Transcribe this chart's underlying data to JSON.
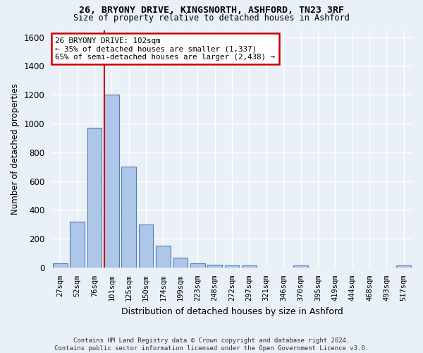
{
  "title1": "26, BRYONY DRIVE, KINGSNORTH, ASHFORD, TN23 3RF",
  "title2": "Size of property relative to detached houses in Ashford",
  "xlabel": "Distribution of detached houses by size in Ashford",
  "ylabel": "Number of detached properties",
  "categories": [
    "27sqm",
    "52sqm",
    "76sqm",
    "101sqm",
    "125sqm",
    "150sqm",
    "174sqm",
    "199sqm",
    "223sqm",
    "248sqm",
    "272sqm",
    "297sqm",
    "321sqm",
    "346sqm",
    "370sqm",
    "395sqm",
    "419sqm",
    "444sqm",
    "468sqm",
    "493sqm",
    "517sqm"
  ],
  "values": [
    30,
    320,
    970,
    1200,
    700,
    300,
    150,
    70,
    30,
    20,
    15,
    15,
    0,
    0,
    15,
    0,
    0,
    0,
    0,
    0,
    15
  ],
  "bar_color": "#aec6e8",
  "bar_edge_color": "#4a7db5",
  "highlight_index": 3,
  "highlight_line_color": "#cc0000",
  "annotation_text": "26 BRYONY DRIVE: 102sqm\n← 35% of detached houses are smaller (1,337)\n65% of semi-detached houses are larger (2,438) →",
  "annotation_box_color": "#cc0000",
  "ylim": [
    0,
    1650
  ],
  "yticks": [
    0,
    200,
    400,
    600,
    800,
    1000,
    1200,
    1400,
    1600
  ],
  "footer": "Contains HM Land Registry data © Crown copyright and database right 2024.\nContains public sector information licensed under the Open Government Licence v3.0.",
  "bg_color": "#eaf0f8",
  "grid_color": "#ffffff"
}
